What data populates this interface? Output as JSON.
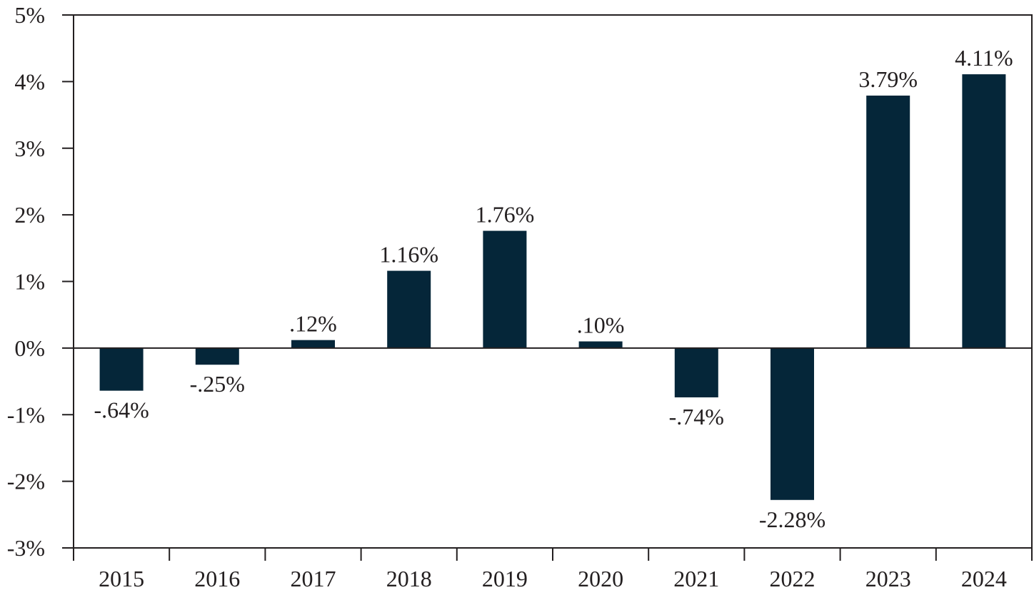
{
  "chart_data": {
    "type": "bar",
    "title": "",
    "xlabel": "",
    "ylabel": "",
    "categories": [
      "2015",
      "2016",
      "2017",
      "2018",
      "2019",
      "2020",
      "2021",
      "2022",
      "2023",
      "2024"
    ],
    "values": [
      -0.64,
      -0.25,
      0.12,
      1.16,
      1.76,
      0.1,
      -0.74,
      -2.28,
      3.79,
      4.11
    ],
    "data_labels": [
      "-.64%",
      "-.25%",
      ".12%",
      "1.16%",
      "1.76%",
      ".10%",
      "-.74%",
      "-2.28%",
      "3.79%",
      "4.11%"
    ],
    "ylim": [
      -3,
      5
    ],
    "yticks": [
      5,
      4,
      3,
      2,
      1,
      0,
      -1,
      -2,
      -3
    ],
    "ytick_labels": [
      "5%",
      "4%",
      "3%",
      "2%",
      "1%",
      "0%",
      "-1%",
      "-2%",
      "-3%"
    ],
    "grid": false,
    "legend": "none",
    "bar_color": "#052639"
  }
}
